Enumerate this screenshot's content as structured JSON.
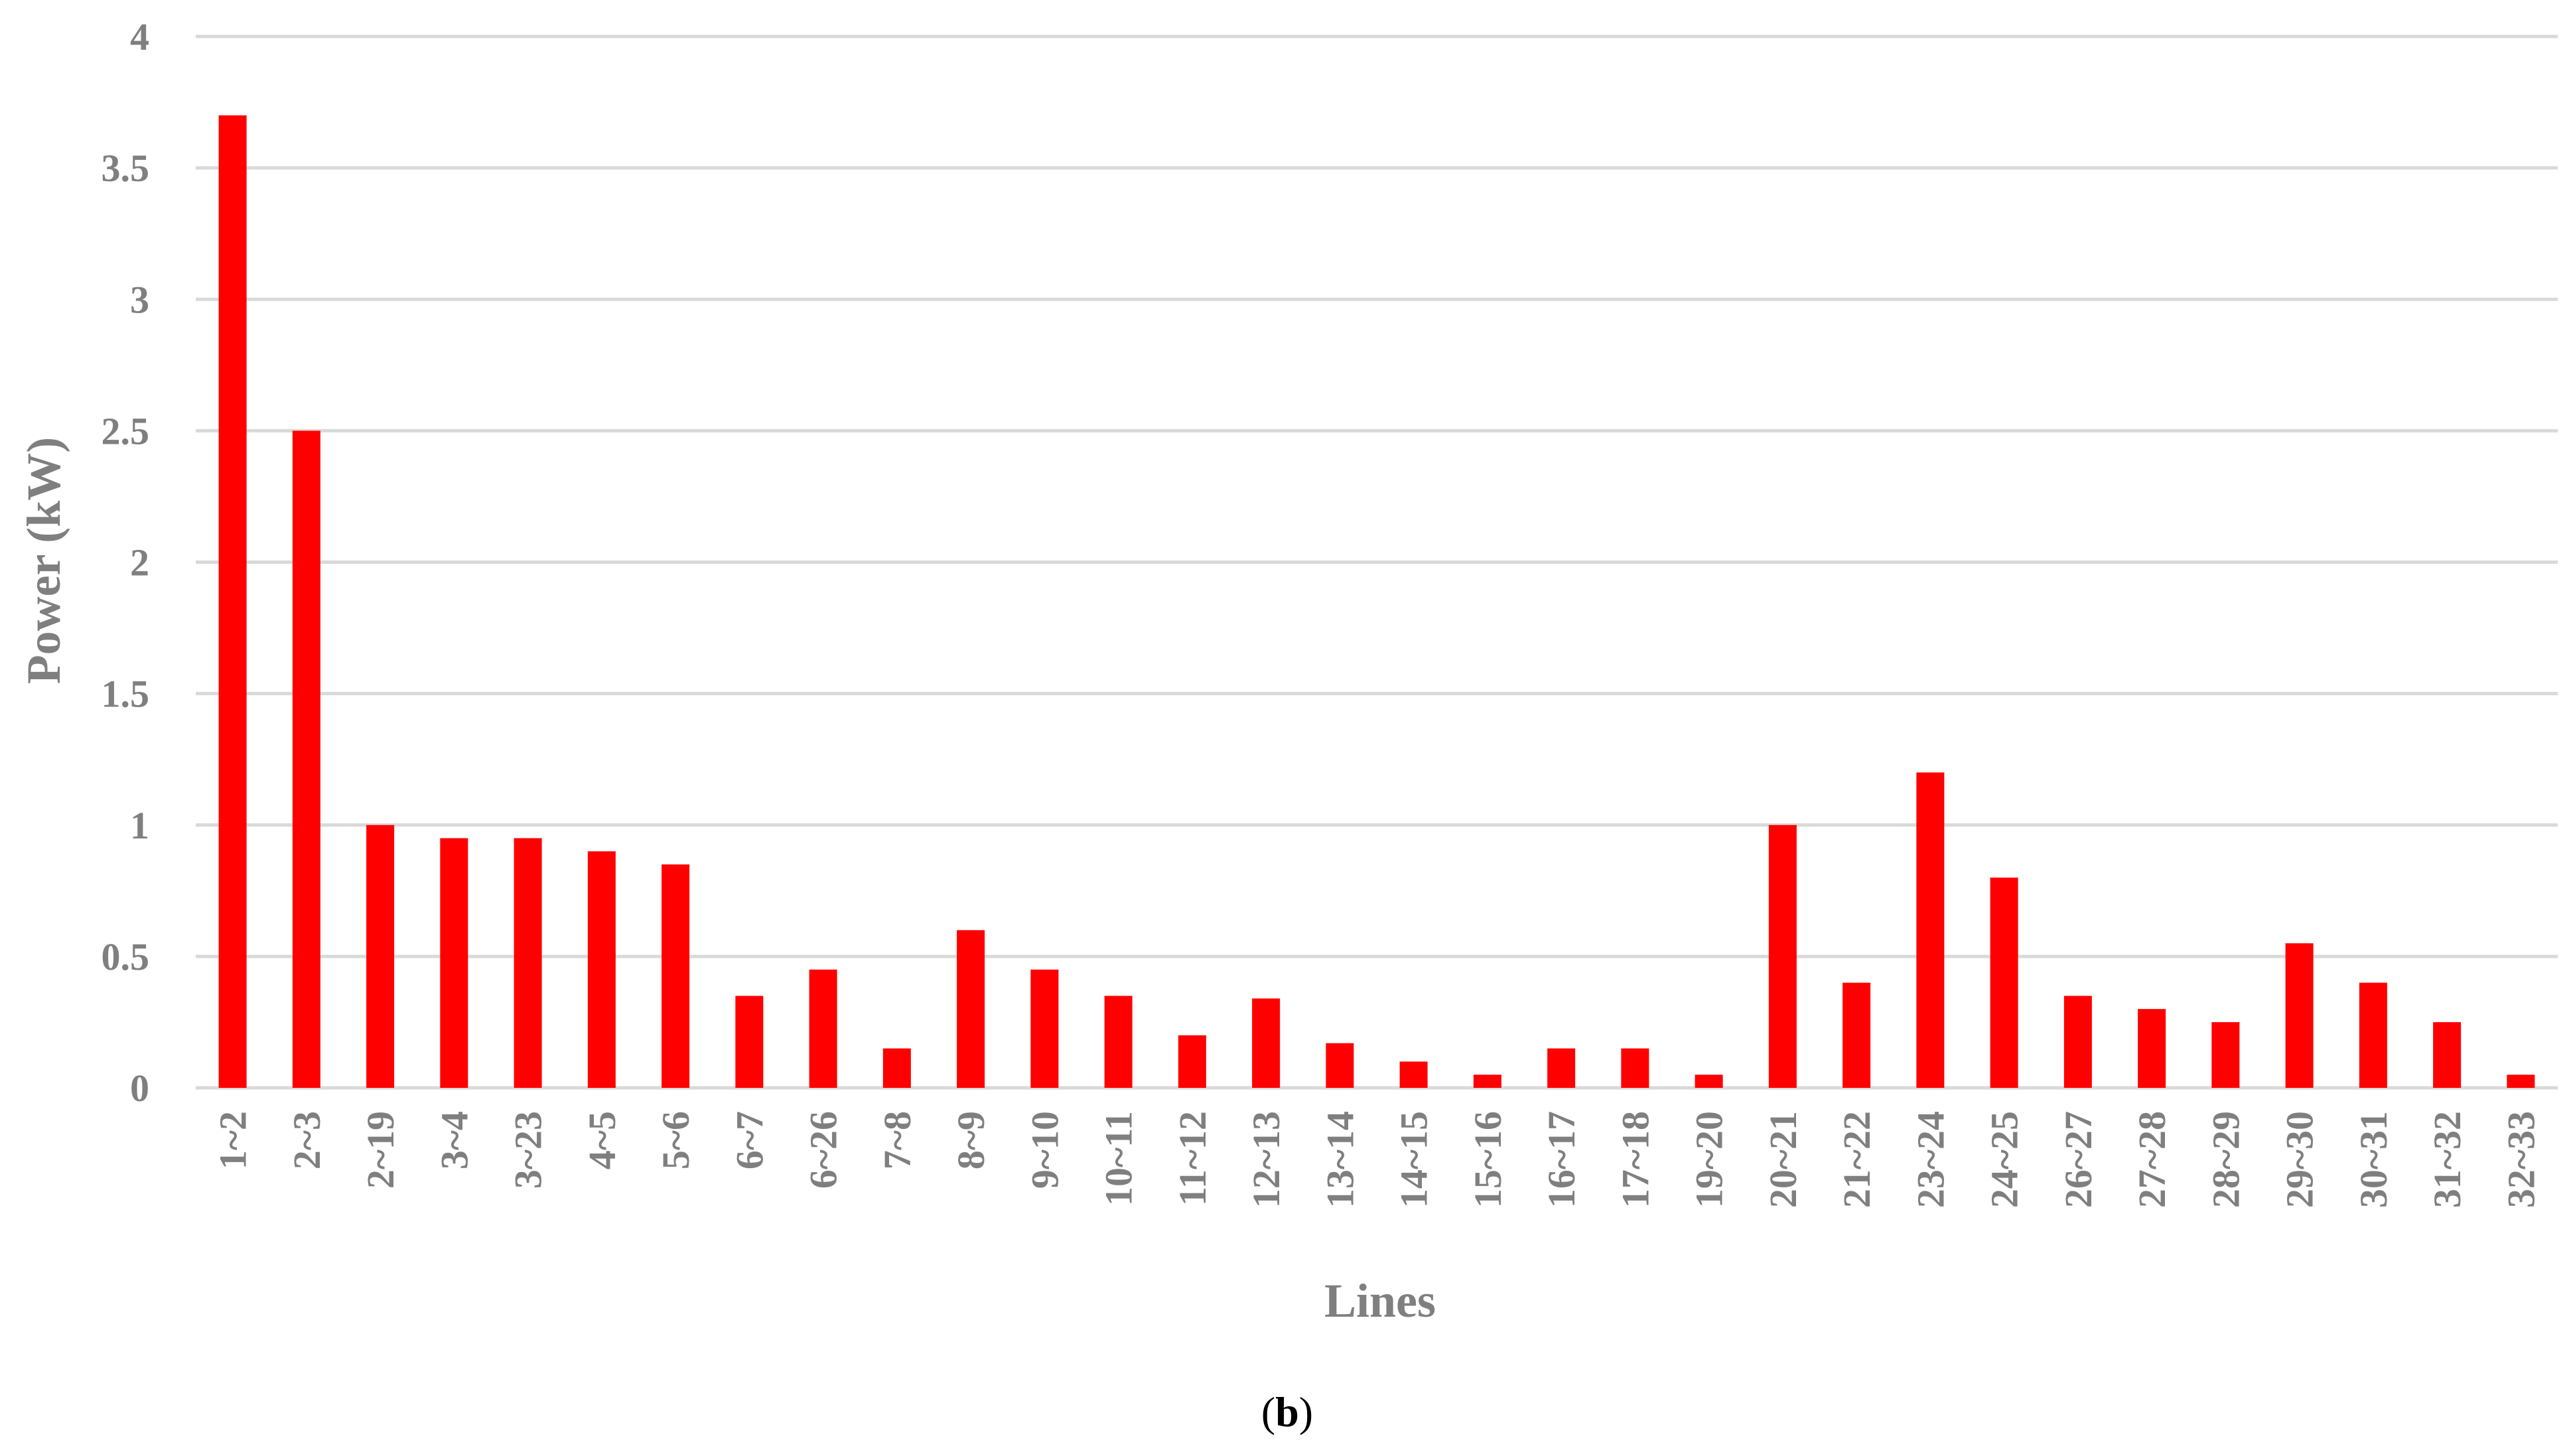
{
  "chart_data": {
    "type": "bar",
    "title": "",
    "xlabel": "Lines",
    "ylabel": "Power (kW)",
    "ylim": [
      0,
      4
    ],
    "yticks": [
      "0",
      "0.5",
      "1",
      "1.5",
      "2",
      "2.5",
      "3",
      "3.5",
      "4"
    ],
    "grid": true,
    "bar_color": "#ff0000",
    "categories": [
      "1~2",
      "2~3",
      "2~19",
      "3~4",
      "3~23",
      "4~5",
      "5~6",
      "6~7",
      "6~26",
      "7~8",
      "8~9",
      "9~10",
      "10~11",
      "11~12",
      "12~13",
      "13~14",
      "14~15",
      "15~16",
      "16~17",
      "17~18",
      "19~20",
      "20~21",
      "21~22",
      "23~24",
      "24~25",
      "26~27",
      "27~28",
      "28~29",
      "29~30",
      "30~31",
      "31~32",
      "32~33"
    ],
    "values": [
      3.7,
      2.5,
      1.0,
      0.95,
      0.95,
      0.9,
      0.85,
      0.35,
      0.45,
      0.15,
      0.6,
      0.45,
      0.35,
      0.2,
      0.34,
      0.17,
      0.1,
      0.05,
      0.15,
      0.15,
      0.05,
      1.0,
      0.4,
      1.2,
      0.8,
      0.35,
      0.3,
      0.25,
      0.55,
      0.4,
      0.25,
      0.05
    ]
  },
  "caption": {
    "open": "(",
    "letter": "b",
    "close": ")"
  }
}
